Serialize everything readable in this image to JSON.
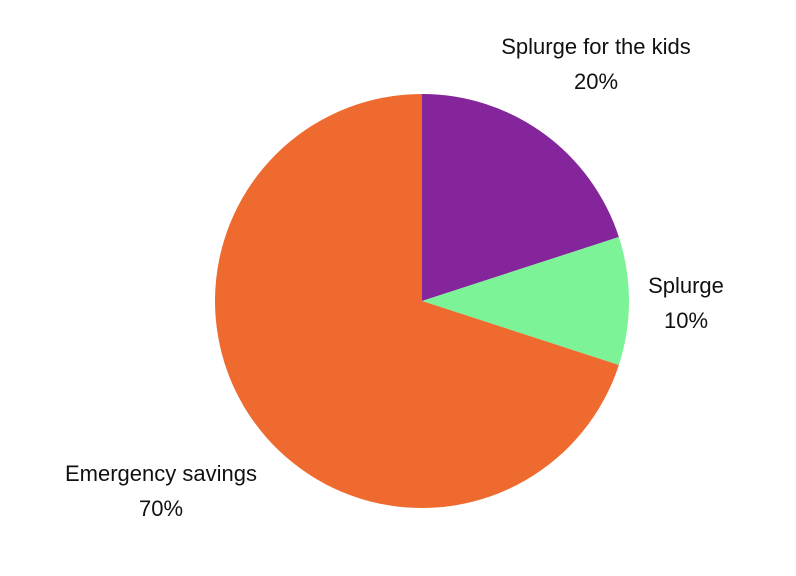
{
  "chart_data": {
    "type": "pie",
    "title": "",
    "start_angle_deg": 0,
    "direction": "clockwise",
    "slices": [
      {
        "label": "Splurge for the kids",
        "value": 20,
        "display": "20%",
        "color": "#84259b"
      },
      {
        "label": "Splurge",
        "value": 10,
        "display": "10%",
        "color": "#7df398"
      },
      {
        "label": "Emergency savings",
        "value": 70,
        "display": "70%",
        "color": "#ee6a2e"
      }
    ]
  }
}
